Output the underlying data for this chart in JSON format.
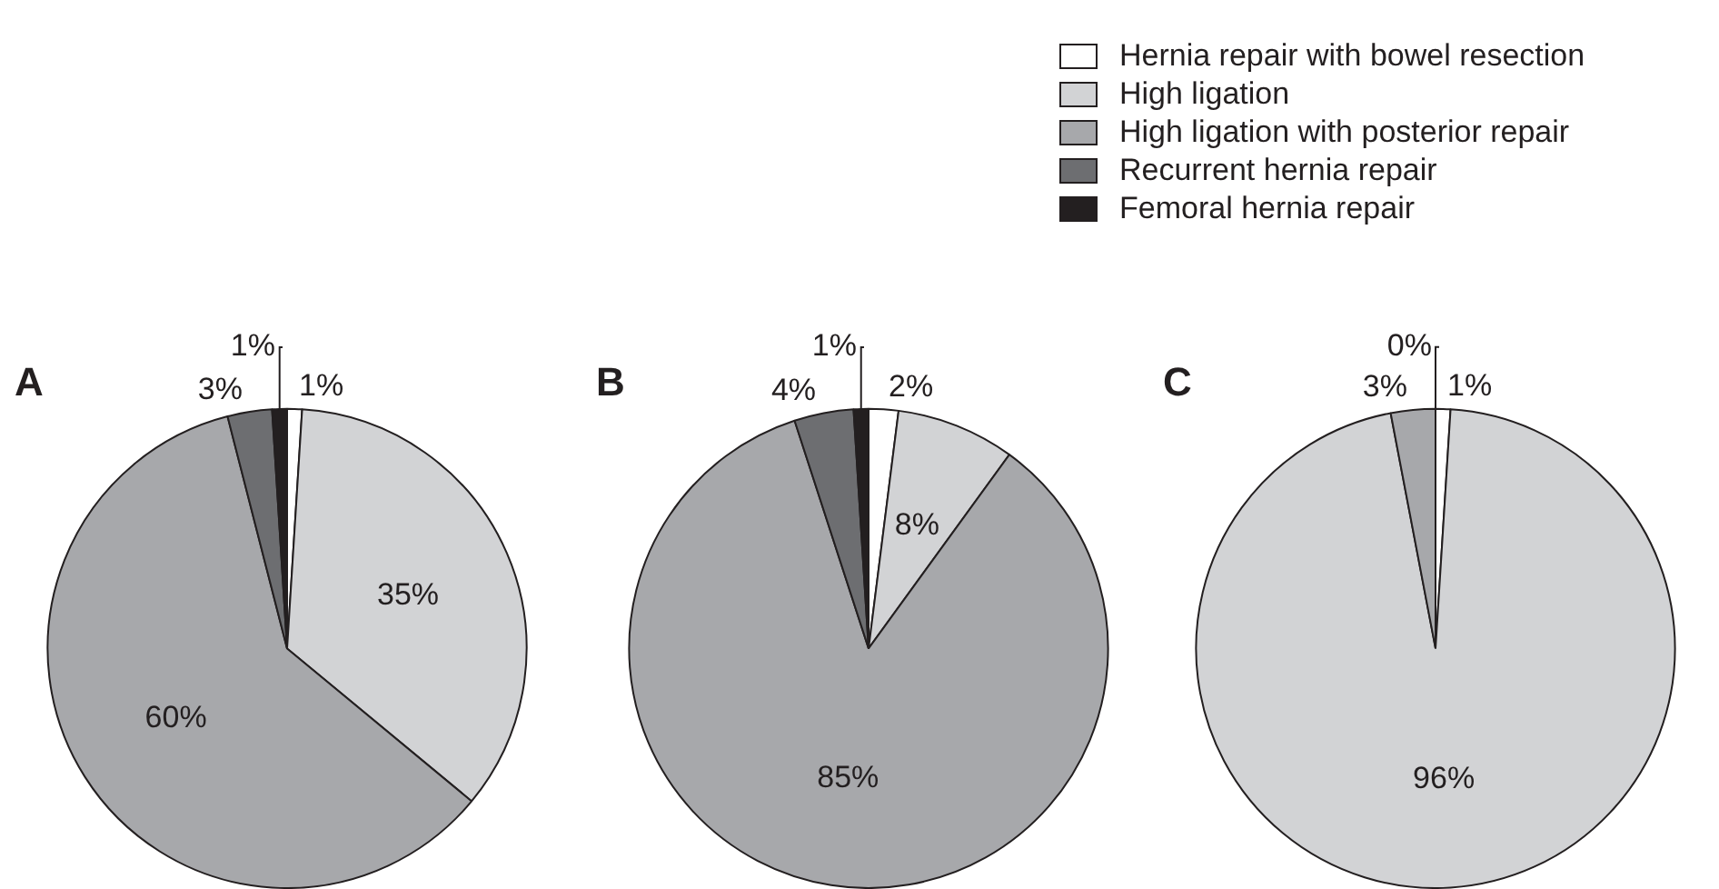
{
  "chart_data": [
    {
      "type": "pie",
      "title": "A",
      "categories": [
        "Hernia repair with bowel resection",
        "High ligation",
        "High ligation with posterior repair",
        "Recurrent hernia repair",
        "Femoral hernia repair"
      ],
      "values": [
        1,
        35,
        60,
        3,
        1
      ],
      "value_labels": [
        "1%",
        "35%",
        "60%",
        "3%",
        "1%"
      ],
      "colors": [
        "#ffffff",
        "#d2d3d5",
        "#a7a8ab",
        "#6d6e71",
        "#231f20"
      ],
      "legend": "top right"
    },
    {
      "type": "pie",
      "title": "B",
      "categories": [
        null,
        null,
        null,
        null,
        null
      ],
      "values": [
        2,
        8,
        85,
        4,
        1
      ],
      "value_labels": [
        "2%",
        "8%",
        "85%",
        "4%",
        "1%"
      ],
      "colors": [
        "#ffffff",
        "#d2d3d5",
        "#a7a8ab",
        "#6d6e71",
        "#231f20"
      ]
    },
    {
      "type": "pie",
      "title": "C",
      "categories": [
        null,
        null,
        null,
        null,
        null
      ],
      "values": [
        1,
        96,
        3,
        0,
        null
      ],
      "value_labels": [
        "1%",
        "96%",
        "3%",
        "0%",
        null
      ],
      "colors": [
        "#ffffff",
        "#d2d3d5",
        "#a7a8ab",
        "#6d6e71",
        "#231f20"
      ]
    }
  ]
}
